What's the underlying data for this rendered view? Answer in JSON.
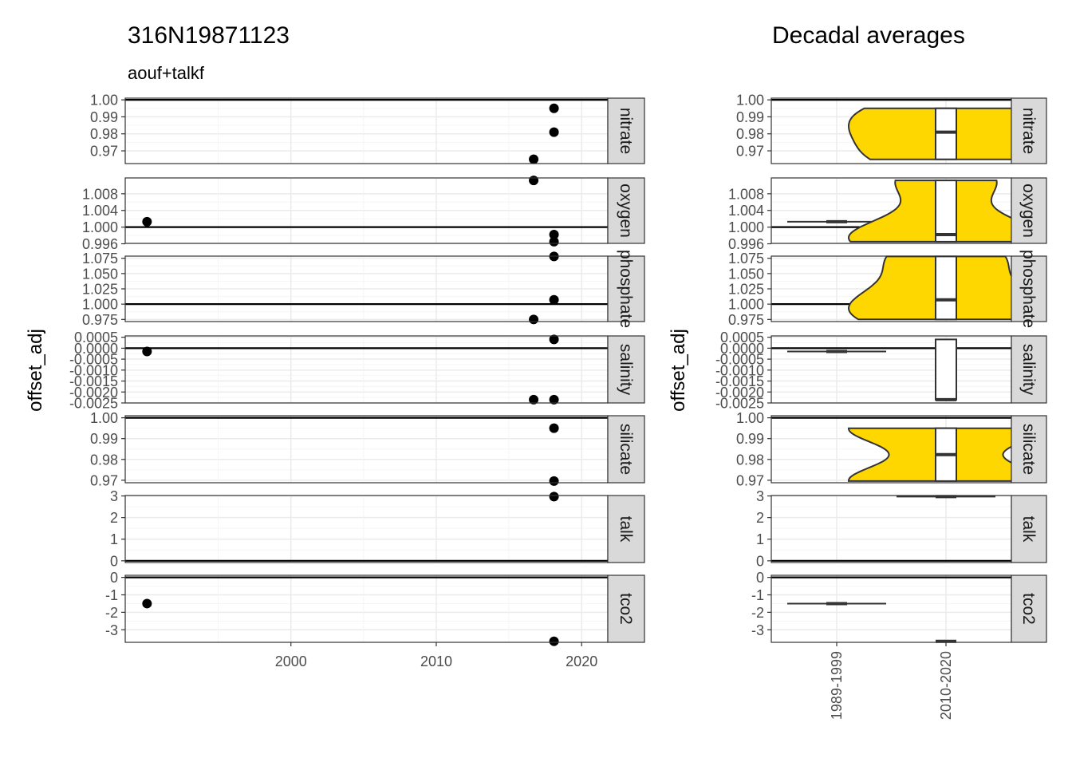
{
  "colors": {
    "point": "#000000",
    "violin_fill": "#FFD700",
    "strip_fill": "#D9D9D9",
    "grid_major": "#EBEBEB",
    "grid_minor": "#F5F5F5",
    "panel_border": "#333333",
    "ref_line": "#000000"
  },
  "chart_data": [
    {
      "type": "scatter",
      "title": "316N19871123",
      "subtitle": "aouf+talkf",
      "ylabel": "offset_adj",
      "xlabel": "",
      "x_domain": [
        1988.6,
        2021.8
      ],
      "x_ticks": [
        2000,
        2010,
        2020
      ],
      "x_tick_labels": [
        "2000",
        "2010",
        "2020"
      ],
      "grid": true,
      "facets": [
        {
          "strip": "nitrate",
          "ylim": [
            0.9625,
            1.001
          ],
          "y_ticks": [
            1.0,
            0.99,
            0.98,
            0.97
          ],
          "y_tick_labels": [
            "1.00",
            "0.99",
            "0.98",
            "0.97"
          ],
          "ref_line": 1,
          "points": [
            {
              "x": 2018.1,
              "y": 0.995
            },
            {
              "x": 2018.1,
              "y": 0.981
            },
            {
              "x": 2016.7,
              "y": 0.965
            }
          ]
        },
        {
          "strip": "oxygen",
          "ylim": [
            0.9961,
            1.0118
          ],
          "y_ticks": [
            1.008,
            1.004,
            1.0,
            0.996
          ],
          "y_tick_labels": [
            "1.008",
            "1.004",
            "1.000",
            "0.996"
          ],
          "ref_line": 1,
          "points": [
            {
              "x": 1990.1,
              "y": 1.0013
            },
            {
              "x": 2016.7,
              "y": 1.0112
            },
            {
              "x": 2018.1,
              "y": 0.9982
            },
            {
              "x": 2018.1,
              "y": 0.9965
            }
          ]
        },
        {
          "strip": "phosphate",
          "ylim": [
            0.9715,
            1.0785
          ],
          "y_ticks": [
            1.075,
            1.05,
            1.025,
            1.0,
            0.975
          ],
          "y_tick_labels": [
            "1.075",
            "1.050",
            "1.025",
            "1.000",
            "0.975"
          ],
          "ref_line": 1,
          "points": [
            {
              "x": 2018.1,
              "y": 1.078
            },
            {
              "x": 2018.1,
              "y": 1.007
            },
            {
              "x": 2016.7,
              "y": 0.975
            }
          ]
        },
        {
          "strip": "salinity",
          "ylim": [
            -0.0025,
            0.00056
          ],
          "y_ticks": [
            0.0005,
            0.0,
            -0.0005,
            -0.001,
            -0.0015,
            -0.002,
            -0.0025
          ],
          "y_tick_labels": [
            "0.0005",
            "0.0000",
            "-0.0005",
            "-0.0010",
            "-0.0015",
            "-0.0020",
            "-0.0025"
          ],
          "ref_line": 0,
          "points": [
            {
              "x": 1990.1,
              "y": -0.00015
            },
            {
              "x": 2018.1,
              "y": 0.0004
            },
            {
              "x": 2016.7,
              "y": -0.00235
            },
            {
              "x": 2018.1,
              "y": -0.00235
            }
          ]
        },
        {
          "strip": "silicate",
          "ylim": [
            0.9688,
            1.001
          ],
          "y_ticks": [
            1.0,
            0.99,
            0.98,
            0.97
          ],
          "y_tick_labels": [
            "1.00",
            "0.99",
            "0.98",
            "0.97"
          ],
          "ref_line": 1,
          "points": [
            {
              "x": 2018.1,
              "y": 0.995
            },
            {
              "x": 2018.1,
              "y": 0.9696
            }
          ]
        },
        {
          "strip": "talk",
          "ylim": [
            -0.08,
            3.02
          ],
          "y_ticks": [
            3,
            2,
            1,
            0
          ],
          "y_tick_labels": [
            "3",
            "2",
            "1",
            "0"
          ],
          "ref_line": 0,
          "points": [
            {
              "x": 2018.1,
              "y": 2.97
            }
          ]
        },
        {
          "strip": "tco2",
          "ylim": [
            -3.72,
            0.12
          ],
          "y_ticks": [
            0,
            -1,
            -2,
            -3
          ],
          "y_tick_labels": [
            "0",
            "-1",
            "-2",
            "-3"
          ],
          "ref_line": 0,
          "points": [
            {
              "x": 1990.1,
              "y": -1.5
            },
            {
              "x": 2018.1,
              "y": -3.66
            }
          ]
        }
      ]
    },
    {
      "type": "violin",
      "title": "Decadal averages",
      "ylabel": "offset_adj",
      "categories": [
        "1989-1999",
        "2010-2020"
      ],
      "grid": true,
      "facets": [
        {
          "strip": "nitrate",
          "ref_line": 1,
          "groups": [
            {
              "category": "2010-2020",
              "min": 0.965,
              "q1": 0.965,
              "median": 0.981,
              "q3": 0.995,
              "max": 0.995,
              "violin": true
            }
          ]
        },
        {
          "strip": "oxygen",
          "ref_line": 1,
          "groups": [
            {
              "category": "1989-1999",
              "min": 1.0013,
              "q1": 1.0013,
              "median": 1.0013,
              "q3": 1.0013,
              "max": 1.0013,
              "violin": false
            },
            {
              "category": "2010-2020",
              "min": 0.9965,
              "q1": 0.9965,
              "median": 0.9982,
              "q3": 1.0112,
              "max": 1.0112,
              "violin": true
            }
          ]
        },
        {
          "strip": "phosphate",
          "ref_line": 1,
          "groups": [
            {
              "category": "2010-2020",
              "min": 0.975,
              "q1": 0.975,
              "median": 1.007,
              "q3": 1.078,
              "max": 1.078,
              "violin": true
            }
          ]
        },
        {
          "strip": "salinity",
          "ref_line": 0,
          "groups": [
            {
              "category": "1989-1999",
              "min": -0.00015,
              "q1": -0.00015,
              "median": -0.00015,
              "q3": -0.00015,
              "max": -0.00015,
              "violin": false
            },
            {
              "category": "2010-2020",
              "min": -0.00235,
              "q1": -0.00235,
              "median": -0.00235,
              "q3": 0.0004,
              "max": 0.0004,
              "violin": false
            }
          ]
        },
        {
          "strip": "silicate",
          "ref_line": 1,
          "groups": [
            {
              "category": "2010-2020",
              "min": 0.9696,
              "q1": 0.9696,
              "median": 0.9823,
              "q3": 0.995,
              "max": 0.995,
              "violin": true
            }
          ]
        },
        {
          "strip": "talk",
          "ref_line": 0,
          "groups": [
            {
              "category": "2010-2020",
              "min": 2.97,
              "q1": 2.97,
              "median": 2.97,
              "q3": 2.97,
              "max": 2.97,
              "violin": false
            }
          ]
        },
        {
          "strip": "tco2",
          "ref_line": 0,
          "groups": [
            {
              "category": "1989-1999",
              "min": -1.5,
              "q1": -1.5,
              "median": -1.5,
              "q3": -1.5,
              "max": -1.5,
              "violin": false
            },
            {
              "category": "2010-2020",
              "min": -3.66,
              "q1": -3.66,
              "median": -3.66,
              "q3": -3.66,
              "max": -3.66,
              "violin": false
            }
          ]
        }
      ]
    }
  ]
}
